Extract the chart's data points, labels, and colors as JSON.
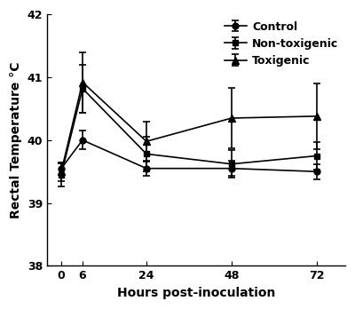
{
  "x": [
    0,
    6,
    24,
    48,
    72
  ],
  "control_y": [
    39.55,
    40.0,
    39.55,
    39.55,
    39.5
  ],
  "control_yerr": [
    0.1,
    0.15,
    0.12,
    0.12,
    0.12
  ],
  "nontoxigenic_y": [
    39.45,
    40.82,
    39.78,
    39.62,
    39.75
  ],
  "nontoxigenic_yerr": [
    0.18,
    0.38,
    0.28,
    0.22,
    0.22
  ],
  "toxigenic_y": [
    39.5,
    40.92,
    39.98,
    40.35,
    40.38
  ],
  "toxigenic_yerr": [
    0.15,
    0.48,
    0.32,
    0.48,
    0.52
  ],
  "xlabel": "Hours post-inoculation",
  "ylabel": "Rectal Temperature °C",
  "ylim": [
    38,
    42
  ],
  "yticks": [
    38,
    39,
    40,
    41,
    42
  ],
  "xticks": [
    0,
    6,
    24,
    48,
    72
  ],
  "legend_labels": [
    "Control",
    "Non-toxigenic",
    "Toxigenic"
  ],
  "line_color": "#000000",
  "background_color": "#ffffff",
  "label_fontsize": 10,
  "tick_fontsize": 9,
  "legend_fontsize": 9
}
